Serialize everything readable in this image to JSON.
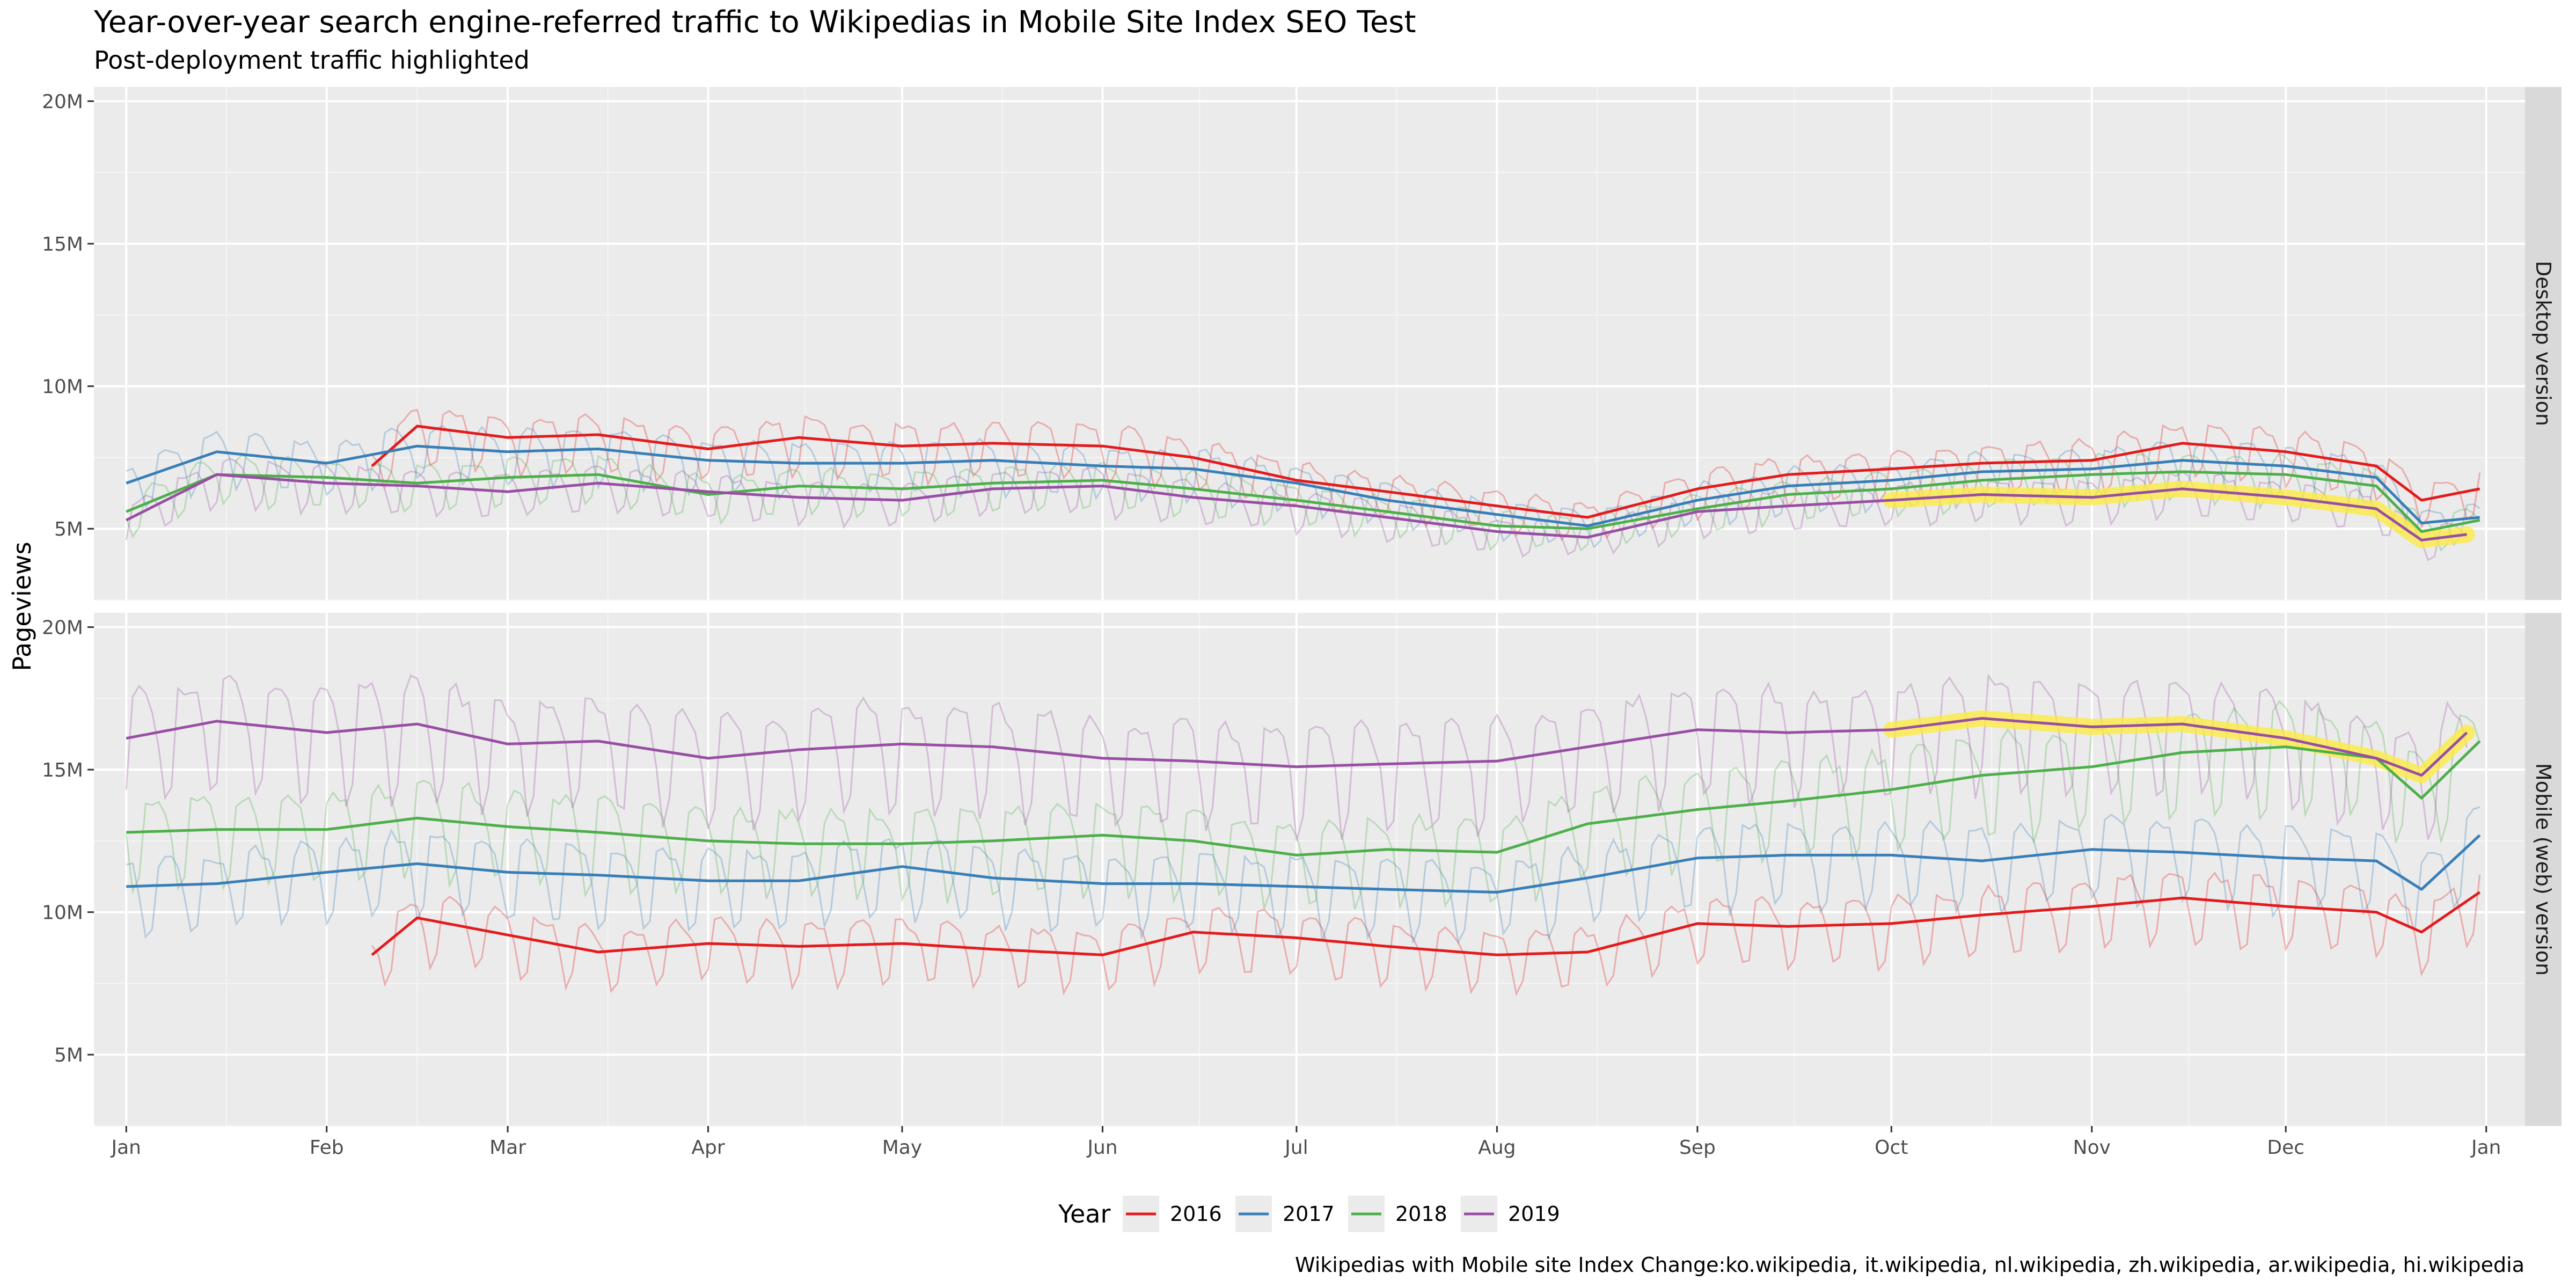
{
  "chart_data": {
    "type": "line",
    "title": "Year-over-year search engine-referred traffic to Wikipedias in Mobile Site Index SEO Test",
    "subtitle": "Post-deployment traffic highlighted",
    "ylabel": "Pageviews",
    "xlabel": "",
    "caption": "Wikipedias with Mobile site Index Change:ko.wikipedia, it.wikipedia, nl.wikipedia, zh.wikipedia, ar.wikipedia, hi.wikipedia",
    "legend": {
      "title": "Year",
      "position": "bottom"
    },
    "grid": true,
    "x_ticks": [
      "Jan",
      "Feb",
      "Mar",
      "Apr",
      "May",
      "Jun",
      "Jul",
      "Aug",
      "Sep",
      "Oct",
      "Nov",
      "Dec",
      "Jan"
    ],
    "x_range_day_of_year": [
      -5,
      371
    ],
    "y_ticks": [
      {
        "value": 5000000,
        "label": "5M"
      },
      {
        "value": 10000000,
        "label": "10M"
      },
      {
        "value": 15000000,
        "label": "15M"
      },
      {
        "value": 20000000,
        "label": "20M"
      }
    ],
    "ylim": [
      2500000,
      20500000
    ],
    "highlight": {
      "description": "Post-deployment traffic highlighted",
      "color": "#ffeb3b"
    },
    "series_colors": {
      "2016": "#e41a1c",
      "2017": "#377eb8",
      "2018": "#4daf4a",
      "2019": "#984ea3"
    },
    "panels": [
      {
        "name": "Desktop version",
        "series": [
          {
            "name": "2016",
            "start_day": 38,
            "smoothed_x": [
              "02-08",
              "02-15",
              "03-01",
              "03-15",
              "04-01",
              "04-15",
              "05-01",
              "05-15",
              "06-01",
              "06-15",
              "07-01",
              "07-15",
              "08-01",
              "08-15",
              "09-01",
              "09-15",
              "10-01",
              "10-15",
              "11-01",
              "11-15",
              "12-01",
              "12-15",
              "12-22",
              "12-31"
            ],
            "smoothed_y": [
              7200000,
              8600000,
              8200000,
              8300000,
              7800000,
              8200000,
              7900000,
              8000000,
              7900000,
              7500000,
              6700000,
              6300000,
              5800000,
              5400000,
              6400000,
              6900000,
              7100000,
              7300000,
              7400000,
              8000000,
              7700000,
              7200000,
              6000000,
              6400000
            ]
          },
          {
            "name": "2017",
            "start_day": 0,
            "smoothed_x": [
              "01-01",
              "01-15",
              "02-01",
              "02-15",
              "03-01",
              "03-15",
              "04-01",
              "04-15",
              "05-01",
              "05-15",
              "06-01",
              "06-15",
              "07-01",
              "07-15",
              "08-01",
              "08-15",
              "09-01",
              "09-15",
              "10-01",
              "10-15",
              "11-01",
              "11-15",
              "12-01",
              "12-15",
              "12-22",
              "12-31"
            ],
            "smoothed_y": [
              6600000,
              7700000,
              7300000,
              7900000,
              7700000,
              7800000,
              7400000,
              7300000,
              7300000,
              7400000,
              7200000,
              7100000,
              6600000,
              6000000,
              5500000,
              5100000,
              6000000,
              6500000,
              6700000,
              7000000,
              7100000,
              7400000,
              7200000,
              6800000,
              5200000,
              5400000
            ]
          },
          {
            "name": "2018",
            "start_day": 0,
            "smoothed_x": [
              "01-01",
              "01-15",
              "02-01",
              "02-15",
              "03-01",
              "03-15",
              "04-01",
              "04-15",
              "05-01",
              "05-15",
              "06-01",
              "06-15",
              "07-01",
              "07-15",
              "08-01",
              "08-15",
              "09-01",
              "09-15",
              "10-01",
              "10-15",
              "11-01",
              "11-15",
              "12-01",
              "12-15",
              "12-22",
              "12-31"
            ],
            "smoothed_y": [
              5600000,
              6900000,
              6800000,
              6600000,
              6800000,
              6900000,
              6200000,
              6500000,
              6400000,
              6600000,
              6700000,
              6400000,
              6000000,
              5600000,
              5100000,
              5000000,
              5700000,
              6200000,
              6400000,
              6700000,
              6900000,
              7000000,
              6900000,
              6500000,
              4900000,
              5300000
            ]
          },
          {
            "name": "2019",
            "start_day": 0,
            "smoothed_x": [
              "01-01",
              "01-15",
              "02-01",
              "02-15",
              "03-01",
              "03-15",
              "04-01",
              "04-15",
              "05-01",
              "05-15",
              "06-01",
              "06-15",
              "07-01",
              "07-15",
              "08-01",
              "08-15",
              "09-01",
              "09-15",
              "10-01",
              "10-15",
              "11-01",
              "11-15",
              "12-01",
              "12-15",
              "12-22",
              "12-29"
            ],
            "smoothed_y": [
              5300000,
              6900000,
              6600000,
              6500000,
              6300000,
              6600000,
              6300000,
              6100000,
              6000000,
              6400000,
              6500000,
              6100000,
              5800000,
              5400000,
              4900000,
              4700000,
              5600000,
              5800000,
              6000000,
              6200000,
              6100000,
              6400000,
              6100000,
              5700000,
              4600000,
              4800000
            ],
            "highlight_from": "10-01"
          }
        ]
      },
      {
        "name": "Mobile (web) version",
        "series": [
          {
            "name": "2016",
            "start_day": 38,
            "smoothed_x": [
              "02-08",
              "02-15",
              "03-01",
              "03-15",
              "04-01",
              "04-15",
              "05-01",
              "05-15",
              "06-01",
              "06-15",
              "07-01",
              "07-15",
              "08-01",
              "08-15",
              "09-01",
              "09-15",
              "10-01",
              "10-15",
              "11-01",
              "11-15",
              "12-01",
              "12-15",
              "12-22",
              "12-31"
            ],
            "smoothed_y": [
              8500000,
              9800000,
              9200000,
              8600000,
              8900000,
              8800000,
              8900000,
              8700000,
              8500000,
              9300000,
              9100000,
              8800000,
              8500000,
              8600000,
              9600000,
              9500000,
              9600000,
              9900000,
              10200000,
              10500000,
              10200000,
              10000000,
              9300000,
              10700000
            ]
          },
          {
            "name": "2017",
            "start_day": 0,
            "smoothed_x": [
              "01-01",
              "01-15",
              "02-01",
              "02-15",
              "03-01",
              "03-15",
              "04-01",
              "04-15",
              "05-01",
              "05-15",
              "06-01",
              "06-15",
              "07-01",
              "07-15",
              "08-01",
              "08-15",
              "09-01",
              "09-15",
              "10-01",
              "10-15",
              "11-01",
              "11-15",
              "12-01",
              "12-15",
              "12-22",
              "12-31"
            ],
            "smoothed_y": [
              10900000,
              11000000,
              11400000,
              11700000,
              11400000,
              11300000,
              11100000,
              11100000,
              11600000,
              11200000,
              11000000,
              11000000,
              10900000,
              10800000,
              10700000,
              11200000,
              11900000,
              12000000,
              12000000,
              11800000,
              12200000,
              12100000,
              11900000,
              11800000,
              10800000,
              12700000
            ]
          },
          {
            "name": "2018",
            "start_day": 0,
            "smoothed_x": [
              "01-01",
              "01-15",
              "02-01",
              "02-15",
              "03-01",
              "03-15",
              "04-01",
              "04-15",
              "05-01",
              "05-15",
              "06-01",
              "06-15",
              "07-01",
              "07-15",
              "08-01",
              "08-15",
              "09-01",
              "09-15",
              "10-01",
              "10-15",
              "11-01",
              "11-15",
              "12-01",
              "12-15",
              "12-22",
              "12-31"
            ],
            "smoothed_y": [
              12800000,
              12900000,
              12900000,
              13300000,
              13000000,
              12800000,
              12500000,
              12400000,
              12400000,
              12500000,
              12700000,
              12500000,
              12000000,
              12200000,
              12100000,
              13100000,
              13600000,
              13900000,
              14300000,
              14800000,
              15100000,
              15600000,
              15800000,
              15400000,
              14000000,
              16000000
            ]
          },
          {
            "name": "2019",
            "start_day": 0,
            "smoothed_x": [
              "01-01",
              "01-15",
              "02-01",
              "02-15",
              "03-01",
              "03-15",
              "04-01",
              "04-15",
              "05-01",
              "05-15",
              "06-01",
              "06-15",
              "07-01",
              "07-15",
              "08-01",
              "08-15",
              "09-01",
              "09-15",
              "10-01",
              "10-15",
              "11-01",
              "11-15",
              "12-01",
              "12-15",
              "12-22",
              "12-29"
            ],
            "smoothed_y": [
              16100000,
              16700000,
              16300000,
              16600000,
              15900000,
              16000000,
              15400000,
              15700000,
              15900000,
              15800000,
              15400000,
              15300000,
              15100000,
              15200000,
              15300000,
              15800000,
              16400000,
              16300000,
              16400000,
              16800000,
              16500000,
              16600000,
              16100000,
              15400000,
              14800000,
              16300000
            ],
            "highlight_from": "10-01"
          }
        ]
      }
    ]
  }
}
